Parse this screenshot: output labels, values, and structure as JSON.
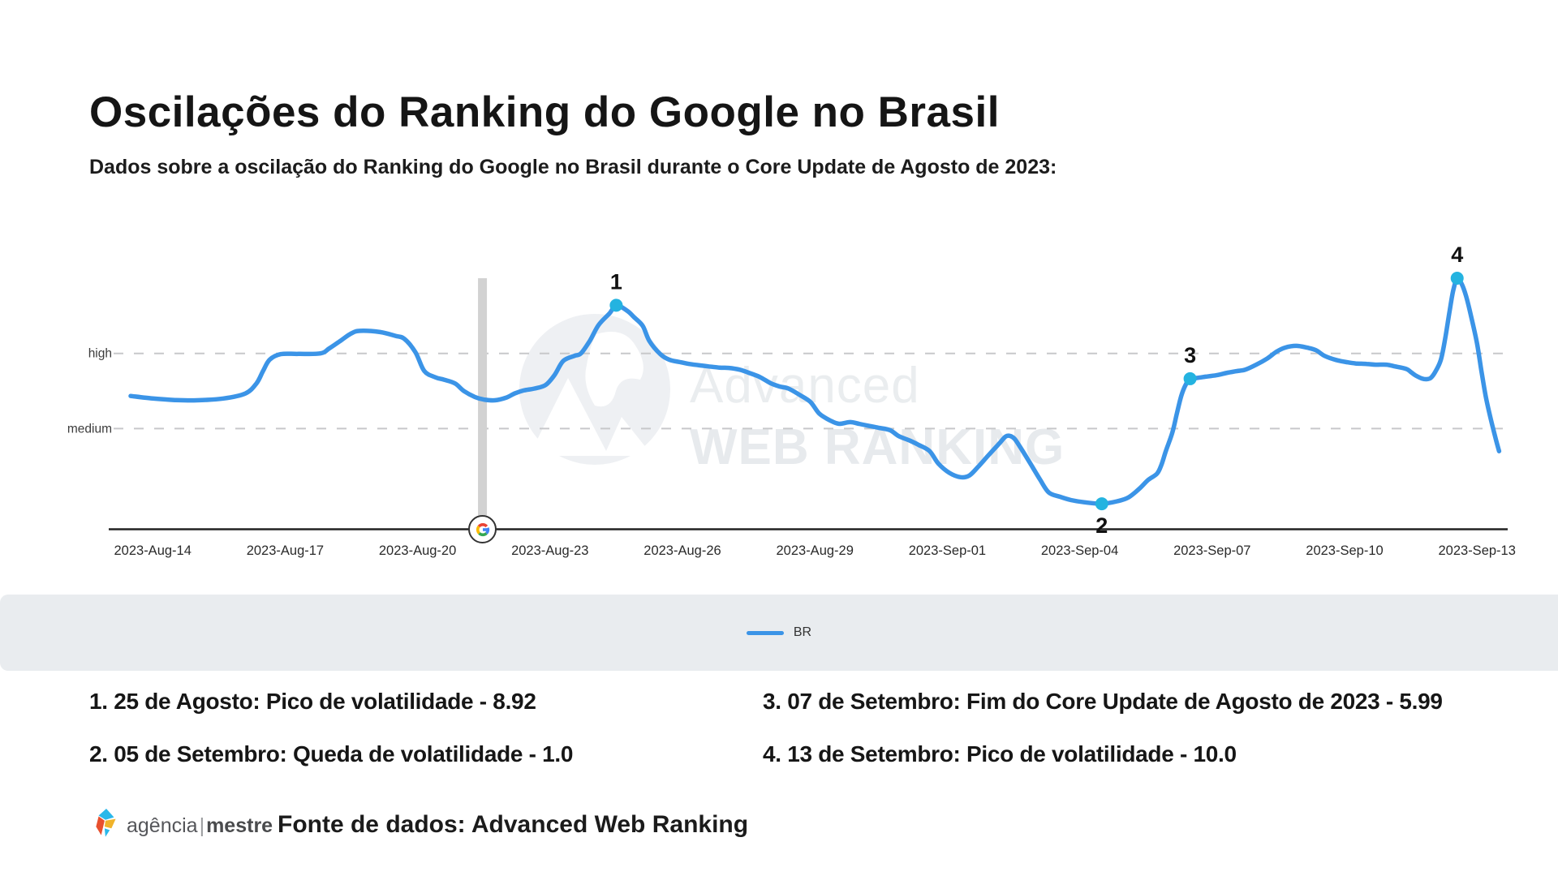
{
  "header": {
    "title": "Oscilações do Ranking do Google no Brasil",
    "subtitle": "Dados sobre a oscilação do Ranking do Google no Brasil durante o Core Update de Agosto de 2023:"
  },
  "chart_data": {
    "type": "line",
    "xlabel": "",
    "ylabel": "",
    "y_range": [
      0,
      10.5
    ],
    "y_ticks": [
      {
        "label": "high",
        "value": 7
      },
      {
        "label": "medium",
        "value": 4
      }
    ],
    "x_ticks": [
      "2023-Aug-14",
      "2023-Aug-17",
      "2023-Aug-20",
      "2023-Aug-23",
      "2023-Aug-26",
      "2023-Aug-29",
      "2023-Sep-01",
      "2023-Sep-04",
      "2023-Sep-07",
      "2023-Sep-10",
      "2023-Sep-13"
    ],
    "x_tick_days": [
      0,
      3,
      6,
      9,
      12,
      15,
      18,
      21,
      24,
      27,
      30
    ],
    "grid_color": "#c7c8ca",
    "marker_color": "#24b3e0",
    "series": [
      {
        "name": "BR",
        "color": "#3b94e7",
        "points": [
          [
            0,
            5.3
          ],
          [
            0.5,
            5.2
          ],
          [
            1,
            5.14
          ],
          [
            1.5,
            5.13
          ],
          [
            2.1,
            5.2
          ],
          [
            2.6,
            5.4
          ],
          [
            2.85,
            5.8
          ],
          [
            3,
            6.3
          ],
          [
            3.15,
            6.75
          ],
          [
            3.4,
            6.97
          ],
          [
            3.8,
            6.98
          ],
          [
            4.3,
            7.0
          ],
          [
            4.5,
            7.2
          ],
          [
            4.75,
            7.5
          ],
          [
            5,
            7.8
          ],
          [
            5.2,
            7.9
          ],
          [
            5.65,
            7.85
          ],
          [
            6,
            7.7
          ],
          [
            6.2,
            7.58
          ],
          [
            6.45,
            7.05
          ],
          [
            6.65,
            6.3
          ],
          [
            6.9,
            6.05
          ],
          [
            7.1,
            5.95
          ],
          [
            7.35,
            5.8
          ],
          [
            7.55,
            5.5
          ],
          [
            7.8,
            5.26
          ],
          [
            8,
            5.16
          ],
          [
            8.25,
            5.13
          ],
          [
            8.5,
            5.23
          ],
          [
            8.7,
            5.4
          ],
          [
            8.9,
            5.52
          ],
          [
            9.15,
            5.6
          ],
          [
            9.4,
            5.74
          ],
          [
            9.6,
            6.13
          ],
          [
            9.8,
            6.7
          ],
          [
            10.05,
            6.9
          ],
          [
            10.2,
            7.0
          ],
          [
            10.4,
            7.5
          ],
          [
            10.6,
            8.13
          ],
          [
            10.85,
            8.6
          ],
          [
            11,
            8.92
          ],
          [
            11.25,
            8.7
          ],
          [
            11.4,
            8.45
          ],
          [
            11.6,
            8.1
          ],
          [
            11.75,
            7.5
          ],
          [
            12,
            6.97
          ],
          [
            12.2,
            6.75
          ],
          [
            12.45,
            6.65
          ],
          [
            12.65,
            6.58
          ],
          [
            12.9,
            6.52
          ],
          [
            13.1,
            6.48
          ],
          [
            13.35,
            6.43
          ],
          [
            13.55,
            6.42
          ],
          [
            13.8,
            6.35
          ],
          [
            14,
            6.23
          ],
          [
            14.25,
            6.06
          ],
          [
            14.5,
            5.81
          ],
          [
            14.7,
            5.68
          ],
          [
            14.9,
            5.6
          ],
          [
            15.15,
            5.35
          ],
          [
            15.4,
            5.06
          ],
          [
            15.6,
            4.6
          ],
          [
            15.85,
            4.32
          ],
          [
            16.05,
            4.19
          ],
          [
            16.3,
            4.26
          ],
          [
            16.5,
            4.19
          ],
          [
            16.75,
            4.1
          ],
          [
            16.95,
            4.03
          ],
          [
            17.2,
            3.94
          ],
          [
            17.4,
            3.7
          ],
          [
            17.65,
            3.52
          ],
          [
            17.85,
            3.35
          ],
          [
            18.1,
            3.1
          ],
          [
            18.3,
            2.6
          ],
          [
            18.55,
            2.23
          ],
          [
            18.8,
            2.06
          ],
          [
            19,
            2.13
          ],
          [
            19.2,
            2.48
          ],
          [
            19.45,
            2.97
          ],
          [
            19.7,
            3.45
          ],
          [
            19.82,
            3.68
          ],
          [
            19.92,
            3.71
          ],
          [
            20.02,
            3.6
          ],
          [
            20.12,
            3.35
          ],
          [
            20.35,
            2.7
          ],
          [
            20.6,
            1.97
          ],
          [
            20.8,
            1.45
          ],
          [
            21.05,
            1.28
          ],
          [
            21.3,
            1.15
          ],
          [
            21.6,
            1.06
          ],
          [
            22,
            1.0
          ],
          [
            22.35,
            1.1
          ],
          [
            22.6,
            1.25
          ],
          [
            22.85,
            1.6
          ],
          [
            23.05,
            1.95
          ],
          [
            23.25,
            2.2
          ],
          [
            23.35,
            2.55
          ],
          [
            23.45,
            3.1
          ],
          [
            23.6,
            3.85
          ],
          [
            23.7,
            4.6
          ],
          [
            23.8,
            5.3
          ],
          [
            23.9,
            5.75
          ],
          [
            24,
            5.99
          ],
          [
            24.15,
            6.02
          ],
          [
            24.35,
            6.07
          ],
          [
            24.6,
            6.13
          ],
          [
            24.85,
            6.23
          ],
          [
            25.05,
            6.29
          ],
          [
            25.25,
            6.35
          ],
          [
            25.5,
            6.55
          ],
          [
            25.75,
            6.8
          ],
          [
            25.95,
            7.06
          ],
          [
            26.15,
            7.23
          ],
          [
            26.4,
            7.3
          ],
          [
            26.65,
            7.23
          ],
          [
            26.85,
            7.13
          ],
          [
            27.05,
            6.9
          ],
          [
            27.3,
            6.74
          ],
          [
            27.55,
            6.65
          ],
          [
            27.75,
            6.6
          ],
          [
            28,
            6.58
          ],
          [
            28.2,
            6.55
          ],
          [
            28.45,
            6.55
          ],
          [
            28.65,
            6.48
          ],
          [
            28.9,
            6.38
          ],
          [
            29,
            6.26
          ],
          [
            29.1,
            6.13
          ],
          [
            29.25,
            6.0
          ],
          [
            29.35,
            5.97
          ],
          [
            29.45,
            6.02
          ],
          [
            29.55,
            6.25
          ],
          [
            29.68,
            6.74
          ],
          [
            29.78,
            7.6
          ],
          [
            29.88,
            8.7
          ],
          [
            29.96,
            9.5
          ],
          [
            30.05,
            10.0
          ],
          [
            30.15,
            9.78
          ],
          [
            30.25,
            9.3
          ],
          [
            30.37,
            8.45
          ],
          [
            30.5,
            7.4
          ],
          [
            30.6,
            6.3
          ],
          [
            30.7,
            5.26
          ],
          [
            30.82,
            4.32
          ],
          [
            30.93,
            3.55
          ],
          [
            31,
            3.1
          ]
        ]
      }
    ],
    "markers": [
      {
        "n": "1",
        "day": 11,
        "value": 8.92,
        "label_position": "above"
      },
      {
        "n": "2",
        "day": 22,
        "value": 1.0,
        "label_position": "below"
      },
      {
        "n": "3",
        "day": 24,
        "value": 5.99,
        "label_position": "above"
      },
      {
        "n": "4",
        "day": 30.05,
        "value": 10.0,
        "label_position": "above"
      }
    ],
    "event_marker": {
      "day": 7.97,
      "icon": "google-g-icon"
    },
    "watermark": {
      "line1": "Advanced",
      "line2": "WEB RANKING"
    }
  },
  "legend": {
    "label": "BR",
    "color": "#3b94e7"
  },
  "annotations": {
    "items": [
      "1. 25 de Agosto: Pico de volatilidade - 8.92",
      "2. 05 de Setembro: Queda de volatilidade - 1.0",
      "3. 07 de Setembro: Fim do Core Update de Agosto de 2023 - 5.99",
      "4. 13 de Setembro: Pico de volatilidade - 10.0"
    ]
  },
  "footer": {
    "brand_left": "agência",
    "brand_divider": "|",
    "brand_right": "mestre",
    "source": "Fonte de dados: Advanced Web Ranking"
  }
}
